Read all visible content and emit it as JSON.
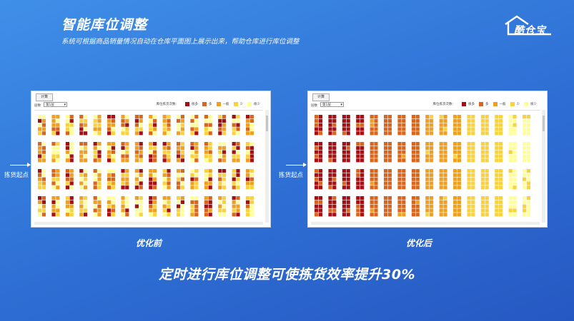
{
  "title": "智能库位调整",
  "subtitle": "系统可根据商品销量情况自动在仓库平面图上展示出来，帮助仓库进行库位调整",
  "logo": {
    "text": "酷仓宝",
    "icon": "house-icon"
  },
  "panel": {
    "calc_button": "计算",
    "floor_label": "层数",
    "floor_value": "第1层",
    "legend_title": "库位拣货次数:",
    "legend": [
      {
        "label": "很多",
        "color": "#a50f15"
      },
      {
        "label": "多",
        "color": "#d9661c"
      },
      {
        "label": "一般",
        "color": "#f0a020"
      },
      {
        "label": "少",
        "color": "#fad23c"
      },
      {
        "label": "很少",
        "color": "#ffff99"
      }
    ]
  },
  "pick_point_label": "拣货起点",
  "captions": {
    "before": "优化前",
    "after": "优化后"
  },
  "headline": "定时进行库位调整可使拣货效率提升30%"
}
